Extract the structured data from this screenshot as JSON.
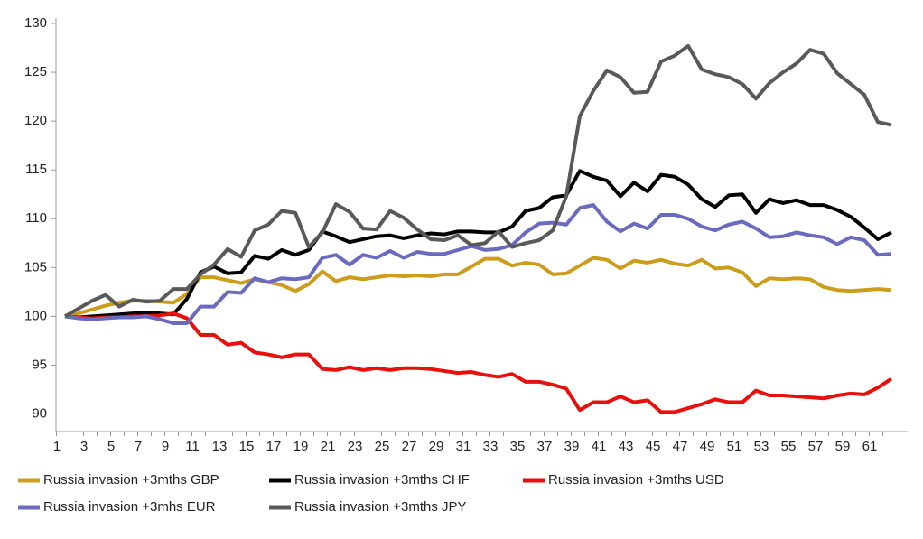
{
  "chart_data": {
    "type": "line",
    "categories": [
      "1",
      null,
      "3",
      null,
      "5",
      null,
      "7",
      null,
      "9",
      null,
      "11",
      null,
      "13",
      null,
      "15",
      null,
      "17",
      null,
      "19",
      null,
      "21",
      null,
      "23",
      null,
      "25",
      null,
      "27",
      null,
      "29",
      null,
      "31",
      null,
      "33",
      null,
      "35",
      null,
      "37",
      null,
      "39",
      null,
      "41",
      null,
      "43",
      null,
      "45",
      null,
      "47",
      null,
      "49",
      null,
      "51",
      null,
      "53",
      null,
      "55",
      null,
      "57",
      null,
      "59",
      null,
      "61",
      null
    ],
    "ylim": [
      88.2,
      130
    ],
    "yticks": [
      90,
      95,
      100,
      105,
      110,
      115,
      120,
      125,
      130
    ],
    "grid": false,
    "series": [
      {
        "name": "Russia invasion +3mths GBP",
        "color": "#cc9d1c",
        "values": [
          100,
          100.3,
          100.7,
          101.1,
          101.4,
          101.6,
          101.6,
          101.5,
          101.4,
          102.3,
          104.0,
          104.0,
          103.7,
          103.4,
          103.8,
          103.5,
          103.2,
          102.6,
          103.3,
          104.6,
          103.6,
          104.0,
          103.8,
          104.0,
          104.2,
          104.1,
          104.2,
          104.1,
          104.3,
          104.3,
          105.1,
          105.9,
          105.9,
          105.2,
          105.5,
          105.3,
          104.3,
          104.4,
          105.2,
          106.0,
          105.8,
          104.9,
          105.7,
          105.5,
          105.8,
          105.4,
          105.2,
          105.8,
          104.9,
          105.0,
          104.5,
          103.1,
          103.9,
          103.8,
          103.9,
          103.8,
          103.0,
          102.7,
          102.6,
          102.7,
          102.8,
          102.7
        ]
      },
      {
        "name": "Russia invasion +3mths CHF",
        "color": "#000000",
        "values": [
          100,
          99.9,
          100,
          100.1,
          100.2,
          100.3,
          100.4,
          100.3,
          100.2,
          101.8,
          104.5,
          105.1,
          104.4,
          104.5,
          106.2,
          105.9,
          106.8,
          106.3,
          106.8,
          108.7,
          108.2,
          107.6,
          107.9,
          108.2,
          108.3,
          108.0,
          108.3,
          108.5,
          108.4,
          108.7,
          108.7,
          108.6,
          108.6,
          109.2,
          110.8,
          111.1,
          112.2,
          112.4,
          114.9,
          114.3,
          113.9,
          112.3,
          113.7,
          112.8,
          114.5,
          114.3,
          113.5,
          112.0,
          111.2,
          112.4,
          112.5,
          110.6,
          112.0,
          111.6,
          111.9,
          111.4,
          111.4,
          110.9,
          110.2,
          109.1,
          107.9,
          108.6
        ]
      },
      {
        "name": "Russia invasion +3mths USD",
        "color": "#e8100c",
        "values": [
          100,
          99.9,
          99.8,
          99.9,
          99.9,
          100,
          100,
          100.1,
          100.3,
          99.8,
          98.1,
          98.1,
          97.1,
          97.3,
          96.3,
          96.1,
          95.8,
          96.1,
          96.1,
          94.6,
          94.5,
          94.8,
          94.5,
          94.7,
          94.5,
          94.7,
          94.7,
          94.6,
          94.4,
          94.2,
          94.3,
          94.0,
          93.8,
          94.1,
          93.3,
          93.3,
          93.0,
          92.6,
          90.4,
          91.2,
          91.2,
          91.8,
          91.2,
          91.4,
          90.2,
          90.2,
          90.6,
          91.0,
          91.5,
          91.2,
          91.2,
          92.4,
          91.9,
          91.9,
          91.8,
          91.7,
          91.6,
          91.9,
          92.1,
          92.0,
          92.7,
          93.6
        ]
      },
      {
        "name": "Russia invasion +3mhs EUR",
        "color": "#6a6bbf",
        "values": [
          100,
          99.8,
          99.7,
          99.8,
          99.9,
          99.9,
          100,
          99.7,
          99.3,
          99.3,
          101,
          101,
          102.5,
          102.4,
          103.9,
          103.5,
          103.9,
          103.8,
          104,
          106,
          106.3,
          105.3,
          106.3,
          106,
          106.7,
          106,
          106.6,
          106.4,
          106.4,
          106.8,
          107.2,
          106.8,
          106.9,
          107.3,
          108.6,
          109.5,
          109.6,
          109.4,
          111.1,
          111.4,
          109.7,
          108.7,
          109.5,
          109,
          110.4,
          110.4,
          110.0,
          109.2,
          108.8,
          109.4,
          109.7,
          109,
          108.1,
          108.2,
          108.6,
          108.3,
          108.1,
          107.4,
          108.1,
          107.8,
          106.3,
          106.4
        ]
      },
      {
        "name": "Russia invasion +3mths JPY",
        "color": "#595959",
        "values": [
          100,
          100.8,
          101.6,
          102.2,
          101,
          101.7,
          101.5,
          101.6,
          102.8,
          102.8,
          104.3,
          105.3,
          106.9,
          106.1,
          108.8,
          109.4,
          110.8,
          110.6,
          107.1,
          108.6,
          111.5,
          110.7,
          109,
          108.9,
          110.8,
          110.1,
          108.9,
          107.9,
          107.8,
          108.3,
          107.3,
          107.5,
          108.7,
          107.1,
          107.5,
          107.8,
          108.8,
          112.3,
          120.5,
          123.1,
          125.2,
          124.5,
          122.9,
          123.0,
          126.1,
          126.7,
          127.7,
          125.3,
          124.8,
          124.5,
          123.8,
          122.3,
          123.9,
          125.0,
          125.9,
          127.3,
          126.9,
          124.9,
          123.8,
          122.7,
          119.9,
          119.6
        ]
      }
    ]
  }
}
